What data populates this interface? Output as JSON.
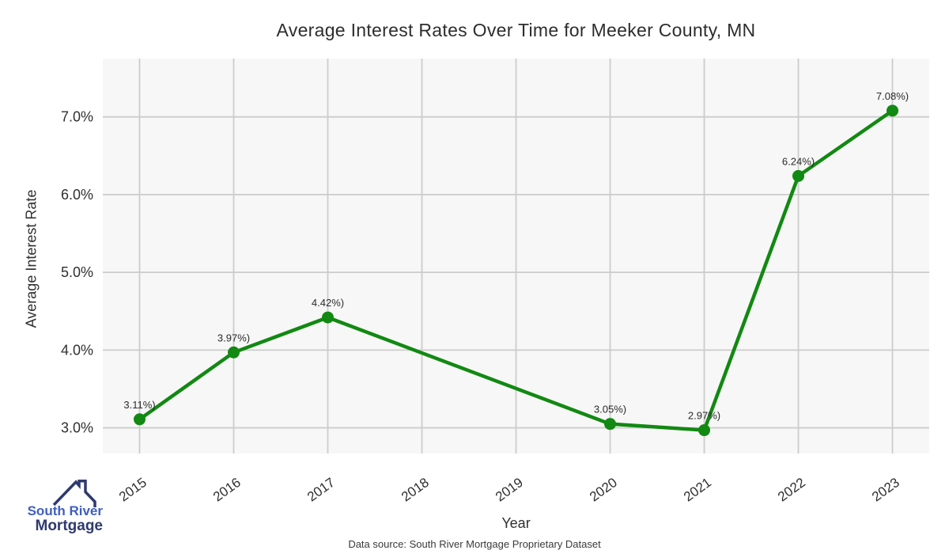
{
  "chart_data": {
    "type": "line",
    "title": "Average Interest Rates Over Time for Meeker County, MN",
    "xlabel": "Year",
    "ylabel": "Average Interest Rate",
    "categories": [
      "2015",
      "2016",
      "2017",
      "2018",
      "2019",
      "2020",
      "2021",
      "2022",
      "2023"
    ],
    "series": [
      {
        "name": "Average Interest Rate",
        "color": "#128912",
        "points": [
          {
            "year": "2015",
            "value": 3.11,
            "label": "3.11%)"
          },
          {
            "year": "2016",
            "value": 3.97,
            "label": "3.97%)"
          },
          {
            "year": "2017",
            "value": 4.42,
            "label": "4.42%)"
          },
          {
            "year": "2020",
            "value": 3.05,
            "label": "3.05%)"
          },
          {
            "year": "2021",
            "value": 2.97,
            "label": "2.97%)"
          },
          {
            "year": "2022",
            "value": 6.24,
            "label": "6.24%)"
          },
          {
            "year": "2023",
            "value": 7.08,
            "label": "7.08%)"
          }
        ]
      }
    ],
    "y_ticks": [
      {
        "value": 3.0,
        "label": "3.0%"
      },
      {
        "value": 4.0,
        "label": "4.0%"
      },
      {
        "value": 5.0,
        "label": "5.0%"
      },
      {
        "value": 6.0,
        "label": "6.0%"
      },
      {
        "value": 7.0,
        "label": "7.0%"
      }
    ],
    "ylim": [
      2.67,
      7.75
    ],
    "grid": true,
    "legend": "none",
    "plot_bg": "#f7f7f7",
    "grid_color": "#cccccc",
    "tick_color": "#2f2f2f",
    "point_label_color": "#2b2b2b"
  },
  "logo": {
    "line1": "South River",
    "line2": "Mortgage",
    "line1_color": "#3f5fbf",
    "line2_color": "#2e3a6e",
    "roof_color": "#2e3a6e"
  },
  "footer": {
    "data_source": "Data source: South River Mortgage Proprietary Dataset"
  }
}
